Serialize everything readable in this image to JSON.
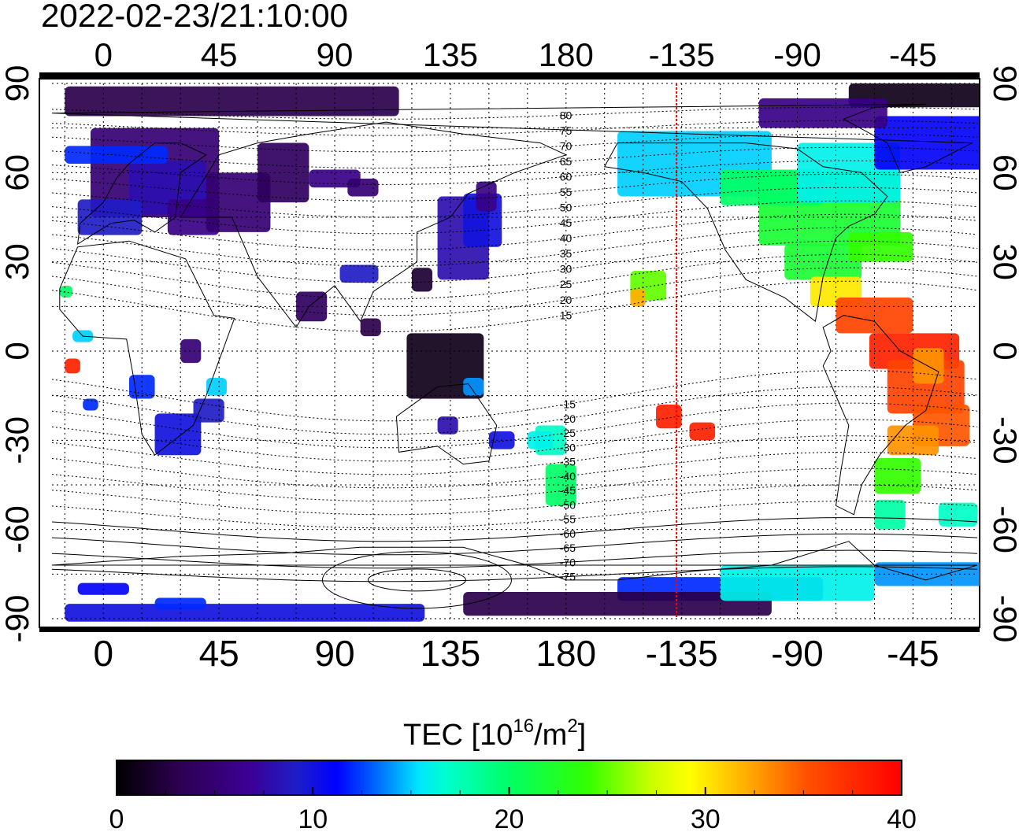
{
  "header": {
    "timestamp": "2022-02-23/21:10:00"
  },
  "map": {
    "projection": "equirectangular",
    "lon_range_shifted": [
      -20,
      340
    ],
    "lat_range": [
      -90,
      90
    ],
    "top_ticks": [
      "0",
      "45",
      "90",
      "135",
      "180",
      "-135",
      "-90",
      "-45"
    ],
    "bottom_ticks": [
      "0",
      "45",
      "90",
      "135",
      "180",
      "-135",
      "-90",
      "-45"
    ],
    "left_ticks": [
      "90",
      "60",
      "30",
      "0",
      "-30",
      "-60",
      "-90"
    ],
    "right_ticks": [
      "90",
      "60",
      "30",
      "0",
      "-30",
      "-60",
      "-90"
    ],
    "magnetic_latitude_labels": [
      "80",
      "75",
      "70",
      "65",
      "60",
      "55",
      "50",
      "45",
      "40",
      "35",
      "30",
      "25",
      "20",
      "15",
      "-15",
      "-20",
      "-25",
      "-30",
      "-35",
      "-40",
      "-45",
      "-50",
      "-55",
      "-60",
      "-65",
      "-70",
      "-75"
    ],
    "terminator_longitude": -137,
    "terminator_color": "#ff0000"
  },
  "colorbar": {
    "title": "TEC  [10",
    "title_sup": "16",
    "title_mid": "/m",
    "title_sup2": "2",
    "title_end": "]",
    "min": 0,
    "max": 40,
    "tick_labels": [
      "0",
      "10",
      "20",
      "30",
      "40"
    ],
    "colormap": [
      "#000000",
      "#2d0050",
      "#3c0096",
      "#1e1ec8",
      "#0000ff",
      "#0080ff",
      "#00ffff",
      "#00ff80",
      "#00ff00",
      "#c8ff00",
      "#ffff00",
      "#ffa000",
      "#ff3c00",
      "#ff0000"
    ]
  }
}
